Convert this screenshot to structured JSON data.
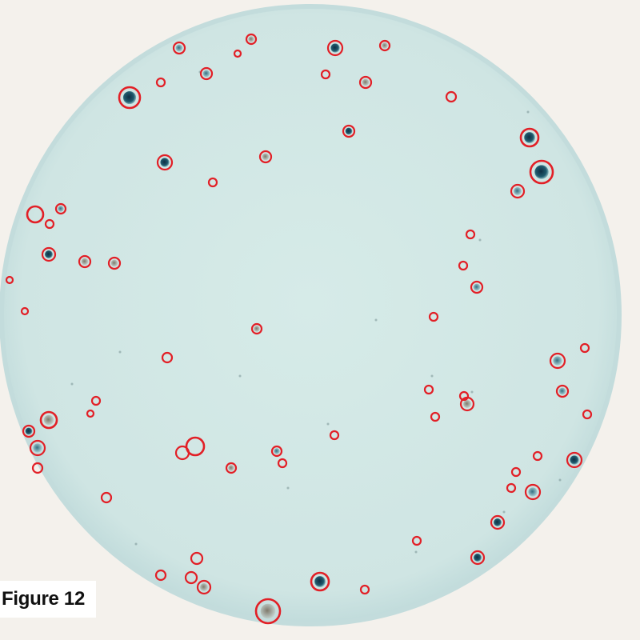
{
  "figure": {
    "caption": "Figure 12"
  },
  "colors": {
    "background": "#f4f1ec",
    "dish_fill": "#d4e8e6",
    "dish_rim": "#bcd8d8",
    "colony_dark": "#123a4f",
    "colony_mid": "#3f7a8a",
    "colony_brown": "#8a8578",
    "marker_ring": "#e21f26"
  },
  "marker_count": 72
}
